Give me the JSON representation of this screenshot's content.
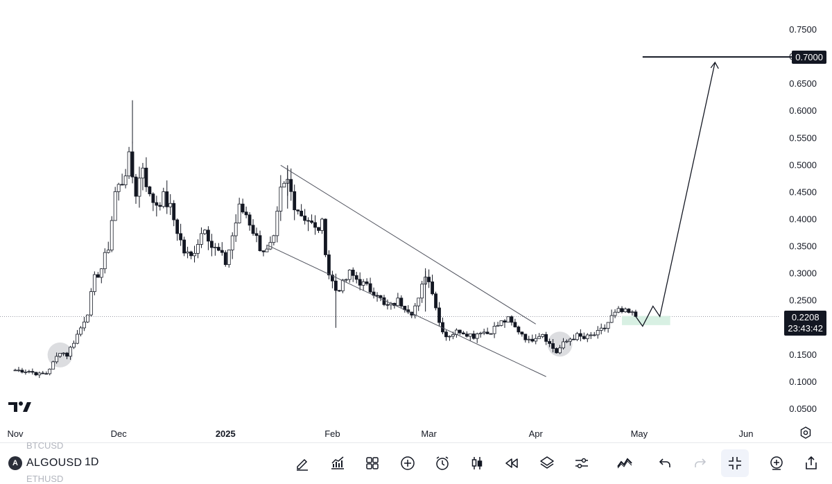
{
  "chart_data": {
    "type": "candlestick",
    "symbol": "ALGOUSD",
    "interval": "1D",
    "y_axis": {
      "scale": "linear",
      "ylim": [
        0.0,
        0.78
      ],
      "ticks": [
        "0.0500",
        "0.1000",
        "0.1500",
        "0.2000",
        "0.2500",
        "0.3000",
        "0.3500",
        "0.4000",
        "0.4500",
        "0.5000",
        "0.5500",
        "0.6000",
        "0.6500",
        "0.7000",
        "0.7500"
      ]
    },
    "x_axis": {
      "labels": [
        {
          "text": "Nov",
          "date": "2024-11-01",
          "bold": false
        },
        {
          "text": "Dec",
          "date": "2024-12-01",
          "bold": false
        },
        {
          "text": "2025",
          "date": "2025-01-01",
          "bold": true
        },
        {
          "text": "Feb",
          "date": "2025-02-01",
          "bold": false
        },
        {
          "text": "Mar",
          "date": "2025-03-01",
          "bold": false
        },
        {
          "text": "Apr",
          "date": "2025-04-01",
          "bold": false
        },
        {
          "text": "May",
          "date": "2025-05-01",
          "bold": false
        },
        {
          "text": "Jun",
          "date": "2025-06-01",
          "bold": false
        }
      ]
    },
    "price_path": [
      [
        "2024-11-01",
        0.122
      ],
      [
        "2024-11-05",
        0.12
      ],
      [
        "2024-11-08",
        0.114
      ],
      [
        "2024-11-10",
        0.116
      ],
      [
        "2024-11-12",
        0.135
      ],
      [
        "2024-11-14",
        0.157
      ],
      [
        "2024-11-16",
        0.15
      ],
      [
        "2024-11-18",
        0.175
      ],
      [
        "2024-11-20",
        0.2
      ],
      [
        "2024-11-22",
        0.23
      ],
      [
        "2024-11-24",
        0.29
      ],
      [
        "2024-11-26",
        0.31
      ],
      [
        "2024-11-28",
        0.35
      ],
      [
        "2024-11-30",
        0.45
      ],
      [
        "2024-12-02",
        0.47
      ],
      [
        "2024-12-04",
        0.51
      ],
      [
        "2024-12-06",
        0.45
      ],
      [
        "2024-12-08",
        0.5
      ],
      [
        "2024-12-10",
        0.44
      ],
      [
        "2024-12-12",
        0.43
      ],
      [
        "2024-12-14",
        0.44
      ],
      [
        "2024-12-16",
        0.42
      ],
      [
        "2024-12-18",
        0.38
      ],
      [
        "2024-12-20",
        0.34
      ],
      [
        "2024-12-22",
        0.33
      ],
      [
        "2024-12-24",
        0.36
      ],
      [
        "2024-12-26",
        0.39
      ],
      [
        "2024-12-28",
        0.35
      ],
      [
        "2024-12-30",
        0.34
      ],
      [
        "2025-01-01",
        0.32
      ],
      [
        "2025-01-03",
        0.37
      ],
      [
        "2025-01-05",
        0.42
      ],
      [
        "2025-01-07",
        0.41
      ],
      [
        "2025-01-09",
        0.38
      ],
      [
        "2025-01-11",
        0.35
      ],
      [
        "2025-01-13",
        0.34
      ],
      [
        "2025-01-15",
        0.36
      ],
      [
        "2025-01-17",
        0.45
      ],
      [
        "2025-01-19",
        0.47
      ],
      [
        "2025-01-21",
        0.43
      ],
      [
        "2025-01-23",
        0.41
      ],
      [
        "2025-01-25",
        0.4
      ],
      [
        "2025-01-27",
        0.38
      ],
      [
        "2025-01-29",
        0.39
      ],
      [
        "2025-01-31",
        0.3
      ],
      [
        "2025-02-02",
        0.27
      ],
      [
        "2025-02-04",
        0.28
      ],
      [
        "2025-02-06",
        0.3
      ],
      [
        "2025-02-08",
        0.29
      ],
      [
        "2025-02-10",
        0.28
      ],
      [
        "2025-02-12",
        0.27
      ],
      [
        "2025-02-14",
        0.265
      ],
      [
        "2025-02-16",
        0.24
      ],
      [
        "2025-02-18",
        0.24
      ],
      [
        "2025-02-20",
        0.25
      ],
      [
        "2025-02-22",
        0.24
      ],
      [
        "2025-02-24",
        0.23
      ],
      [
        "2025-02-26",
        0.25
      ],
      [
        "2025-02-28",
        0.3
      ],
      [
        "2025-03-02",
        0.27
      ],
      [
        "2025-03-04",
        0.21
      ],
      [
        "2025-03-06",
        0.185
      ],
      [
        "2025-03-08",
        0.19
      ],
      [
        "2025-03-10",
        0.195
      ],
      [
        "2025-03-12",
        0.19
      ],
      [
        "2025-03-14",
        0.185
      ],
      [
        "2025-03-16",
        0.195
      ],
      [
        "2025-03-18",
        0.19
      ],
      [
        "2025-03-20",
        0.2
      ],
      [
        "2025-03-22",
        0.21
      ],
      [
        "2025-03-24",
        0.215
      ],
      [
        "2025-03-26",
        0.2
      ],
      [
        "2025-03-28",
        0.19
      ],
      [
        "2025-03-30",
        0.175
      ],
      [
        "2025-04-01",
        0.185
      ],
      [
        "2025-04-03",
        0.19
      ],
      [
        "2025-04-05",
        0.17
      ],
      [
        "2025-04-07",
        0.155
      ],
      [
        "2025-04-09",
        0.17
      ],
      [
        "2025-04-11",
        0.18
      ],
      [
        "2025-04-13",
        0.185
      ],
      [
        "2025-04-15",
        0.18
      ],
      [
        "2025-04-17",
        0.185
      ],
      [
        "2025-04-19",
        0.19
      ],
      [
        "2025-04-21",
        0.2
      ],
      [
        "2025-04-23",
        0.22
      ],
      [
        "2025-04-25",
        0.23
      ],
      [
        "2025-04-27",
        0.228
      ],
      [
        "2025-04-29",
        0.225
      ],
      [
        "2025-04-30",
        0.221
      ]
    ],
    "current_price": "0.2208",
    "countdown": "23:43:42",
    "target_price": "0.7000",
    "annotations": {
      "falling_wedge_upper": {
        "from": [
          "2025-01-17",
          0.5
        ],
        "to": [
          "2025-04-01",
          0.207
        ]
      },
      "falling_wedge_lower": {
        "from": [
          "2025-01-13",
          0.353
        ],
        "to": [
          "2025-04-04",
          0.11
        ]
      },
      "current_price_line": 0.2208,
      "target_line": {
        "from": "2025-05-02",
        "to": "2025-06-07",
        "price": 0.7
      },
      "buy_zone": {
        "from": "2025-04-26",
        "to": "2025-05-10",
        "low": 0.205,
        "high": 0.222
      },
      "projection_path": [
        [
          "2025-04-30",
          0.221
        ],
        [
          "2025-05-02",
          0.203
        ],
        [
          "2025-05-05",
          0.24
        ],
        [
          "2025-05-07",
          0.221
        ],
        [
          "2025-05-23",
          0.69
        ]
      ],
      "highlight_circles": [
        {
          "date": "2024-11-14",
          "price": 0.15
        },
        {
          "date": "2025-04-08",
          "price": 0.17
        }
      ]
    },
    "grid": false,
    "colors": {
      "up": "#ffffff",
      "down": "#131722",
      "wick": "#131722",
      "buy_zone": "#d8f0e3",
      "line": "#131722"
    }
  },
  "toolbar": {
    "symbol": "ALGOUSD",
    "ghost_above": "BTCUSD",
    "ghost_below": "ETHUSD",
    "interval": "1D",
    "icons": [
      "pencil-icon",
      "indicators-icon",
      "layouts-icon",
      "add-icon",
      "alert-icon",
      "bar-style-icon",
      "replay-icon",
      "layers-icon",
      "settings-sliders-icon",
      "trend-icon",
      "undo-icon",
      "redo-icon",
      "fullscreen-exit-icon",
      "add-comment-icon",
      "share-icon"
    ]
  }
}
